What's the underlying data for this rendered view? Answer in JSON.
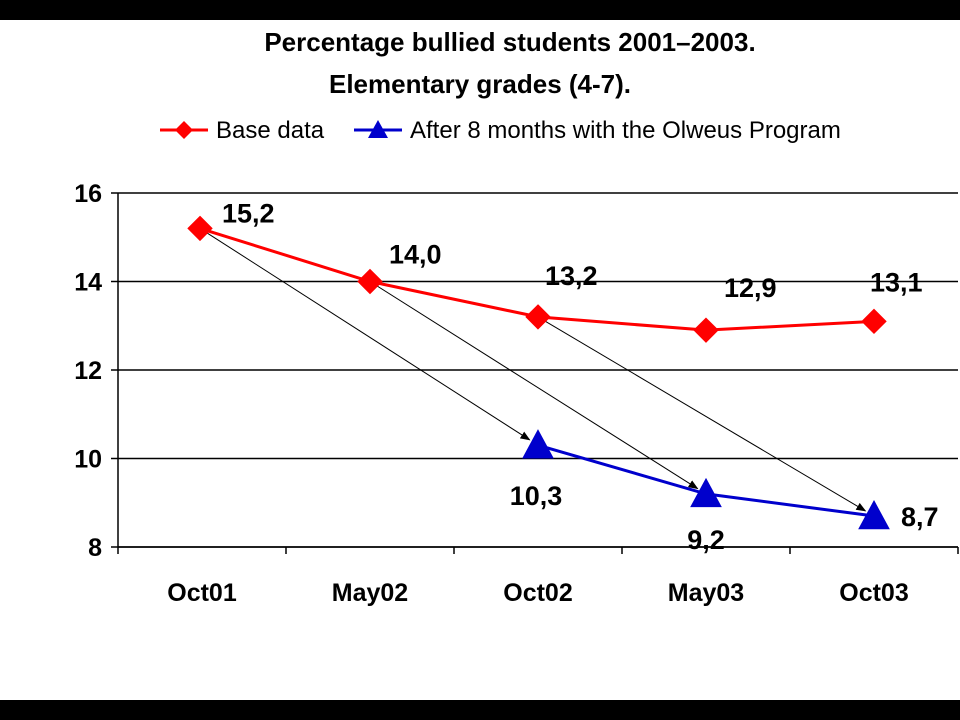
{
  "chart_data": {
    "type": "line",
    "title": "Percentage bullied students 2001–2003.",
    "subtitle": "Elementary grades (4-7).",
    "categories": [
      "Oct01",
      "May02",
      "Oct02",
      "May03",
      "Oct03"
    ],
    "ylim": [
      8,
      16
    ],
    "yticks": [
      "8",
      "10",
      "12",
      "14",
      "16"
    ],
    "grid": true,
    "legend_position": "top",
    "series": [
      {
        "name": "Base data",
        "color": "#FF0000",
        "marker": "diamond",
        "values": [
          15.2,
          14.0,
          13.2,
          12.9,
          13.1
        ],
        "labels": [
          "15,2",
          "14,0",
          "13,2",
          "12,9",
          "13,1"
        ]
      },
      {
        "name": "After 8 months with the Olweus Program",
        "color": "#0000CC",
        "marker": "triangle",
        "values": [
          null,
          null,
          10.3,
          9.2,
          8.7
        ],
        "labels": [
          "",
          "",
          "10,3",
          "9,2",
          "8,7"
        ]
      }
    ],
    "arrows": [
      {
        "from_series": 0,
        "from": "Oct01",
        "to_series": 1,
        "to": "Oct02"
      },
      {
        "from_series": 0,
        "from": "May02",
        "to_series": 1,
        "to": "May03"
      },
      {
        "from_series": 0,
        "from": "Oct02",
        "to_series": 1,
        "to": "Oct03"
      }
    ]
  }
}
